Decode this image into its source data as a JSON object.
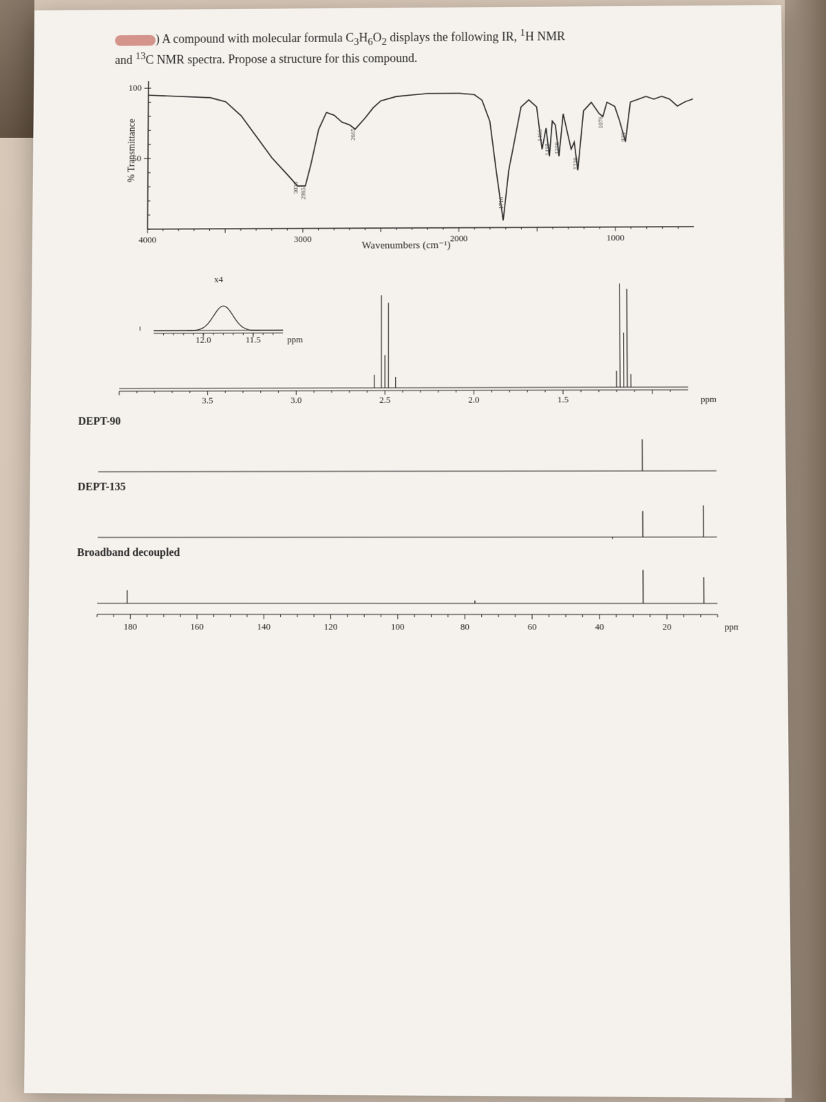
{
  "prompt": {
    "line1_pre": ") A compound with molecular formula C",
    "formula_sub1": "3",
    "formula_mid": "H",
    "formula_sub2": "6",
    "formula_mid2": "O",
    "formula_sub3": "2",
    "line1_post": " displays the following IR, ",
    "nmr1_sup": "1",
    "nmr1_post": "H NMR",
    "line2_pre": "and ",
    "nmr2_sup": "13",
    "nmr2_post": "C NMR spectra. Propose a structure for this compound."
  },
  "ir": {
    "ylabel": "% Transmittance",
    "xlabel": "Wavenumbers (cm⁻¹)",
    "y_ticks": [
      50,
      100
    ],
    "x_ticks": [
      4000,
      3000,
      2000,
      1000
    ],
    "x_range": [
      4000,
      500
    ],
    "y_range": [
      0,
      105
    ],
    "peak_labels": [
      {
        "wn": 3035,
        "text": "3035"
      },
      {
        "wn": 2985,
        "text": "2985"
      },
      {
        "wn": 2665,
        "text": "2665"
      },
      {
        "wn": 1716,
        "text": "1716"
      },
      {
        "wn": 1466,
        "text": "1466"
      },
      {
        "wn": 1419,
        "text": "1419"
      },
      {
        "wn": 1358,
        "text": "1358"
      },
      {
        "wn": 1238,
        "text": "1238"
      },
      {
        "wn": 1076,
        "text": "1076"
      },
      {
        "wn": 933,
        "text": "933"
      }
    ],
    "trace": [
      [
        4000,
        95
      ],
      [
        3800,
        94
      ],
      [
        3600,
        93
      ],
      [
        3500,
        90
      ],
      [
        3400,
        80
      ],
      [
        3300,
        65
      ],
      [
        3200,
        50
      ],
      [
        3100,
        38
      ],
      [
        3035,
        30
      ],
      [
        2985,
        30
      ],
      [
        2950,
        45
      ],
      [
        2900,
        70
      ],
      [
        2850,
        82
      ],
      [
        2800,
        80
      ],
      [
        2750,
        75
      ],
      [
        2700,
        73
      ],
      [
        2665,
        70
      ],
      [
        2600,
        78
      ],
      [
        2550,
        85
      ],
      [
        2500,
        90
      ],
      [
        2400,
        93
      ],
      [
        2300,
        94
      ],
      [
        2200,
        95
      ],
      [
        2100,
        95
      ],
      [
        2000,
        95
      ],
      [
        1900,
        94
      ],
      [
        1850,
        90
      ],
      [
        1800,
        75
      ],
      [
        1760,
        40
      ],
      [
        1716,
        5
      ],
      [
        1680,
        40
      ],
      [
        1600,
        85
      ],
      [
        1550,
        90
      ],
      [
        1500,
        85
      ],
      [
        1466,
        55
      ],
      [
        1440,
        70
      ],
      [
        1419,
        50
      ],
      [
        1400,
        75
      ],
      [
        1380,
        72
      ],
      [
        1358,
        50
      ],
      [
        1330,
        80
      ],
      [
        1300,
        65
      ],
      [
        1280,
        55
      ],
      [
        1260,
        60
      ],
      [
        1238,
        40
      ],
      [
        1200,
        82
      ],
      [
        1150,
        88
      ],
      [
        1100,
        80
      ],
      [
        1076,
        78
      ],
      [
        1050,
        88
      ],
      [
        1000,
        85
      ],
      [
        970,
        75
      ],
      [
        933,
        60
      ],
      [
        900,
        88
      ],
      [
        850,
        90
      ],
      [
        800,
        92
      ],
      [
        750,
        90
      ],
      [
        700,
        92
      ],
      [
        650,
        90
      ],
      [
        600,
        85
      ],
      [
        550,
        88
      ],
      [
        500,
        90
      ]
    ],
    "line_color": "#222222",
    "line_width": 1.6,
    "background": "#f5f2ed"
  },
  "hnmr": {
    "x_range_main": [
      4.0,
      0.8
    ],
    "x_ticks_main": [
      3.5,
      3.0,
      2.5,
      2.0,
      1.5
    ],
    "x_label_main": "ppm",
    "inset_label": "x4",
    "inset_ticks": [
      12.0,
      11.5
    ],
    "inset_label_x": "ppm",
    "peaks": [
      {
        "ppm": 2.56,
        "height": 0.12
      },
      {
        "ppm": 2.52,
        "height": 0.85
      },
      {
        "ppm": 2.5,
        "height": 0.3
      },
      {
        "ppm": 2.48,
        "height": 0.78
      },
      {
        "ppm": 2.44,
        "height": 0.1
      },
      {
        "ppm": 1.2,
        "height": 0.15
      },
      {
        "ppm": 1.18,
        "height": 0.95
      },
      {
        "ppm": 1.16,
        "height": 0.5
      },
      {
        "ppm": 1.14,
        "height": 0.9
      },
      {
        "ppm": 1.12,
        "height": 0.12
      }
    ],
    "inset_peak": {
      "ppm": 11.8,
      "height": 0.6
    },
    "line_color": "#222222"
  },
  "cnmr": {
    "x_range": [
      190,
      5
    ],
    "x_ticks": [
      180,
      160,
      140,
      120,
      100,
      80,
      60,
      40,
      20
    ],
    "x_label": "ppm",
    "dept90_label": "DEPT-90",
    "dept135_label": "DEPT-135",
    "bb_label": "Broadband decoupled",
    "dept90_peaks": [
      {
        "ppm": 27,
        "h": 0.85,
        "dir": 1
      }
    ],
    "dept135_peaks": [
      {
        "ppm": 27,
        "h": 0.7,
        "dir": 1
      },
      {
        "ppm": 9,
        "h": 0.85,
        "dir": 1
      },
      {
        "ppm": 36,
        "h": 0.05,
        "dir": -1
      }
    ],
    "bb_peaks": [
      {
        "ppm": 181,
        "h": 0.35
      },
      {
        "ppm": 77,
        "h": 0.08
      },
      {
        "ppm": 27,
        "h": 0.9
      },
      {
        "ppm": 9,
        "h": 0.7
      }
    ],
    "line_color": "#222222"
  }
}
